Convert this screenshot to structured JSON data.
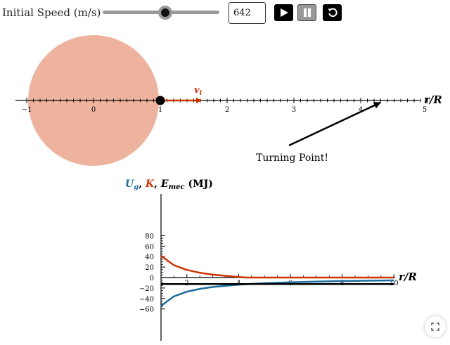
{
  "controls": {
    "speed_label": "Initial Speed (m/s)",
    "speed_value": "642",
    "slider_fraction": 0.535,
    "icons": [
      "play-icon",
      "pause-icon",
      "reset-icon"
    ]
  },
  "orbit": {
    "axis_label": "r/R",
    "ticks": [
      "−1",
      "0",
      "1",
      "2",
      "3",
      "4",
      "5"
    ],
    "velocity_label": "v",
    "velocity_subscript": "i",
    "annotation": "Turning Point!",
    "colors": {
      "planet": "#eeb39e",
      "velocity": "#cc3300",
      "axis": "#000000"
    }
  },
  "graph": {
    "ylabel_parts": {
      "ug": "U",
      "ug_sub": "g",
      "sep1": ", ",
      "k": "K",
      "sep2": ", ",
      "em": "E",
      "em_sub": "mec",
      "unit": " (MJ)"
    },
    "xlabel": "r/R",
    "y_ticks": [
      "80",
      "60",
      "40",
      "20",
      "0",
      "−20",
      "−40",
      "−60"
    ],
    "x_ticks": [
      "2",
      "4",
      "6",
      "8",
      "10"
    ],
    "colors": {
      "ug": "#1a6b9a",
      "k": "#cc3300",
      "em": "#000000"
    }
  },
  "chart_data": {
    "type": "line",
    "title": "",
    "xlabel": "r/R",
    "ylabel": "Ug, K, Emec (MJ)",
    "xlim": [
      1,
      10
    ],
    "ylim": [
      -60,
      80
    ],
    "series": [
      {
        "name": "Ug",
        "color": "#1a6b9a",
        "x": [
          1,
          1.5,
          2,
          2.5,
          3,
          4,
          5,
          6,
          7,
          8,
          9,
          10
        ],
        "values": [
          -54,
          -36,
          -27,
          -21.6,
          -18,
          -13.5,
          -10.8,
          -9,
          -7.7,
          -6.75,
          -6,
          -5.4
        ]
      },
      {
        "name": "K",
        "color": "#cc3300",
        "x": [
          1,
          1.5,
          2,
          2.5,
          3,
          4,
          4.3,
          5,
          6,
          8,
          10
        ],
        "values": [
          41.5,
          23.5,
          14.5,
          9.1,
          5.5,
          1,
          0,
          0,
          0,
          0,
          0
        ]
      },
      {
        "name": "Emec",
        "color": "#000000",
        "x": [
          1,
          10
        ],
        "values": [
          -12.5,
          -12.5
        ]
      }
    ]
  }
}
